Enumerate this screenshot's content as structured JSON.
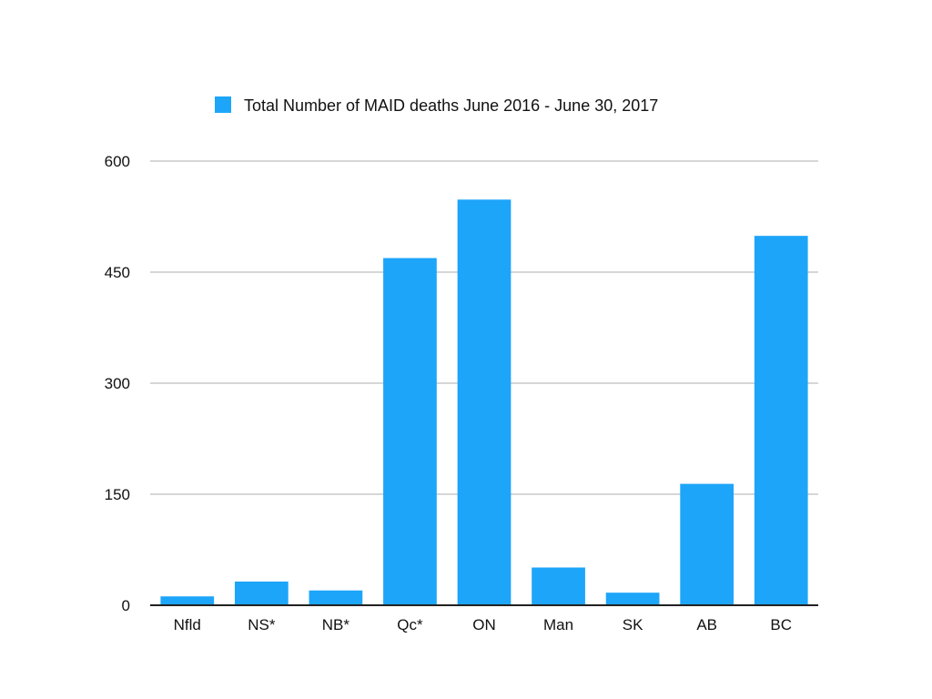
{
  "chart_data": {
    "type": "bar",
    "categories": [
      "Nfld",
      "NS*",
      "NB*",
      "Qc*",
      "ON",
      "Man",
      "SK",
      "AB",
      "BC"
    ],
    "series": [
      {
        "name": "Total Number of MAID deaths June 2016 - June 30, 2017",
        "values": [
          12,
          32,
          20,
          469,
          548,
          51,
          17,
          164,
          499
        ]
      }
    ],
    "yticks": [
      0,
      150,
      300,
      450,
      600
    ],
    "ylim": [
      0,
      600
    ],
    "grid": true,
    "legend_position": "top-center",
    "colors": {
      "bar": "#1da5fa",
      "grid": "#c8c8c8",
      "axis": "#222222"
    }
  }
}
